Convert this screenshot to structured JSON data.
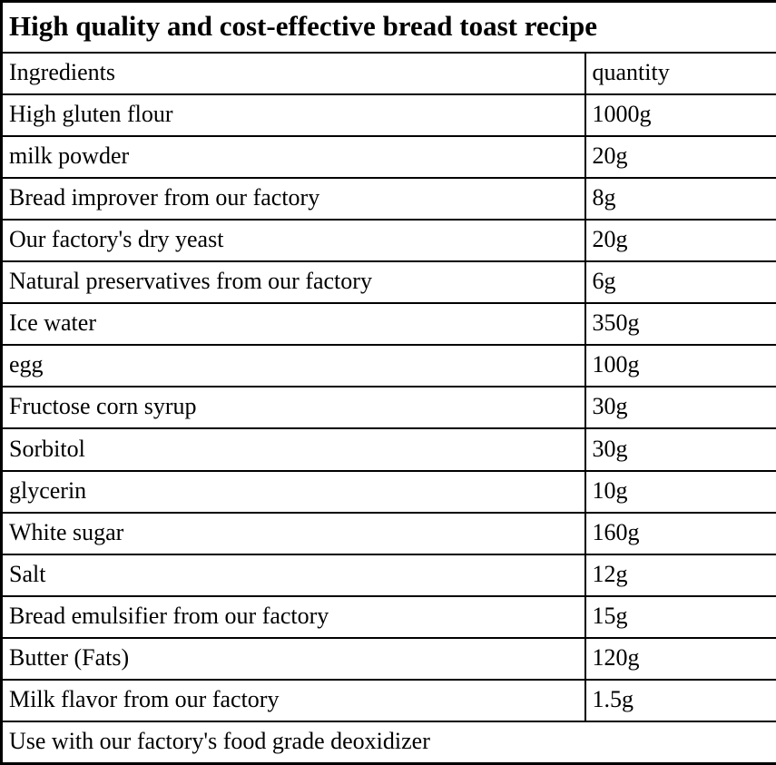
{
  "title": "High quality and cost-effective bread toast recipe",
  "table": {
    "headers": {
      "ingredient": "Ingredients",
      "quantity": "quantity"
    },
    "rows": [
      {
        "ingredient": "High gluten flour",
        "quantity": "1000g"
      },
      {
        "ingredient": "milk powder",
        "quantity": "20g"
      },
      {
        "ingredient": "Bread improver from our factory",
        "quantity": "8g"
      },
      {
        "ingredient": "Our factory's dry yeast",
        "quantity": "20g"
      },
      {
        "ingredient": "Natural preservatives from our factory",
        "quantity": "6g"
      },
      {
        "ingredient": "Ice water",
        "quantity": "350g"
      },
      {
        "ingredient": "egg",
        "quantity": "100g"
      },
      {
        "ingredient": "Fructose corn syrup",
        "quantity": "30g"
      },
      {
        "ingredient": "Sorbitol",
        "quantity": "30g"
      },
      {
        "ingredient": "glycerin",
        "quantity": "10g"
      },
      {
        "ingredient": "White sugar",
        "quantity": "160g"
      },
      {
        "ingredient": "Salt",
        "quantity": "12g"
      },
      {
        "ingredient": "Bread emulsifier from our factory",
        "quantity": "15g"
      },
      {
        "ingredient": "Butter (Fats)",
        "quantity": "120g"
      },
      {
        "ingredient": "Milk flavor from our factory",
        "quantity": "1.5g"
      }
    ],
    "footer": "Use with our factory's food grade deoxidizer"
  },
  "colors": {
    "border": "#000000",
    "background": "#ffffff",
    "text": "#000000"
  }
}
